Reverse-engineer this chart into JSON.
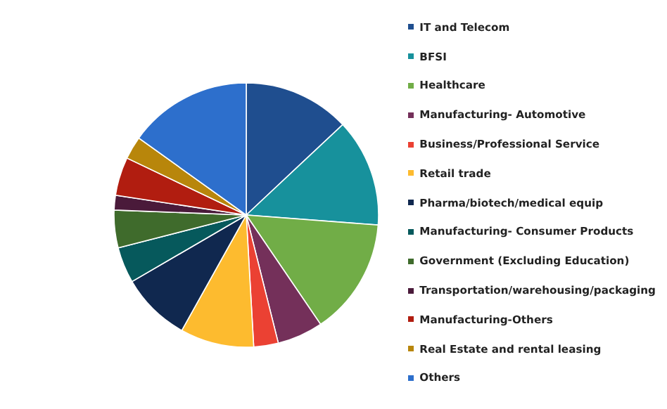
{
  "chart_data": {
    "type": "pie",
    "legend": "right",
    "categories": [
      "IT and Telecom",
      "BFSI",
      "Healthcare",
      "Manufacturing- Automotive",
      "Business/Professional Service",
      "Retail trade",
      "Pharma/biotech/medical equip",
      "Manufacturing- Consumer Products",
      "Government (Excluding Education)",
      "Transportation/warehousing/packaging",
      "Manufacturing-Others",
      "Real Estate and rental leasing",
      "Others"
    ],
    "values": [
      13,
      13.2,
      14.3,
      5.6,
      3,
      9,
      8.5,
      4.4,
      4.6,
      1.8,
      4.7,
      2.8,
      15.1
    ],
    "colors": [
      "#1f4e8f",
      "#17919c",
      "#71ad47",
      "#74305a",
      "#eb4133",
      "#fdbb2f",
      "#10284f",
      "#06595c",
      "#3f6b2c",
      "#4a1a3a",
      "#b11d10",
      "#b8860b",
      "#2d6fcc"
    ]
  }
}
